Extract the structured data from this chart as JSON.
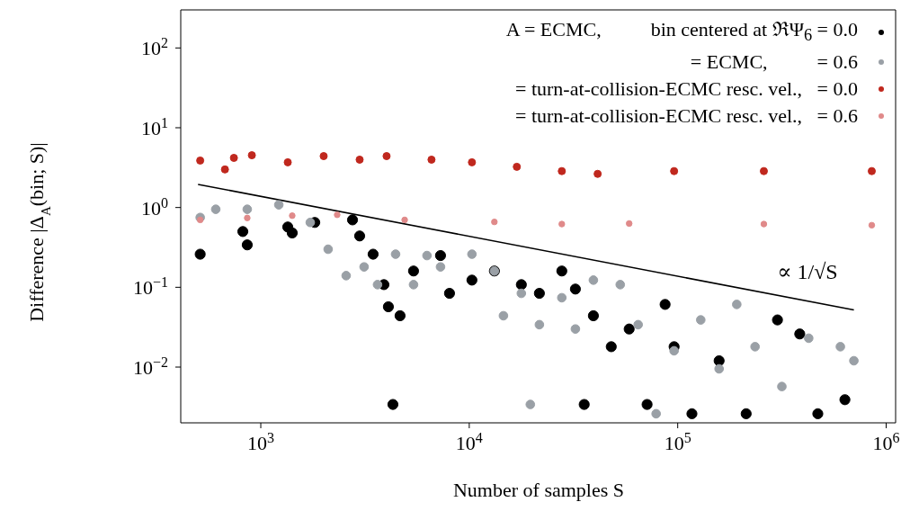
{
  "chart_data": {
    "type": "scatter",
    "xlabel": "Number of samples S",
    "ylabel": "Difference |Δ$_{A}$(bin; S)|",
    "log": "xy",
    "legend": "top right",
    "marker": "circle",
    "xlim": [
      413,
      1110000
    ],
    "xticks": [
      {
        "value": 1000,
        "label": "10$^{3}$"
      },
      {
        "value": 10000,
        "label": "10$^{4}$"
      },
      {
        "value": 100000,
        "label": "10$^{5}$"
      },
      {
        "value": 1000000,
        "label": "10$^{6}$"
      }
    ],
    "ylim": [
      0.002,
      300
    ],
    "yticks": [
      {
        "value": 0.01,
        "label": "10$^{−2}$"
      },
      {
        "value": 0.1,
        "label": "10$^{−1}$"
      },
      {
        "value": 1,
        "label": "10$^{0}$"
      },
      {
        "value": 10,
        "label": "10$^{1}$"
      },
      {
        "value": 100,
        "label": "10$^{2}$"
      }
    ],
    "annotations": [
      "∝ 1/√S"
    ],
    "series": [
      {
        "name": "A = ECMC,          bin centered at ℜΨ$_{6}$ = 0.0",
        "color": "#000000",
        "x": [
          512,
          820,
          861,
          1347,
          1415,
          1815,
          2754,
          2980,
          3458,
          3896,
          4093,
          4303,
          4656,
          5404,
          7280,
          8040,
          10300,
          13200,
          17780,
          21700,
          27800,
          32300,
          35600,
          39400,
          48000,
          58500,
          71300,
          87000,
          96100,
          117000,
          158000,
          213000,
          301000,
          385000,
          470000,
          634000
        ],
        "values": [
          0.26,
          0.5,
          0.34,
          0.57,
          0.48,
          0.65,
          0.7,
          0.44,
          0.26,
          0.108,
          0.057,
          0.0034,
          0.044,
          0.16,
          0.25,
          0.084,
          0.123,
          0.16,
          0.108,
          0.084,
          0.16,
          0.095,
          0.0034,
          0.044,
          0.018,
          0.03,
          0.0034,
          0.061,
          0.018,
          0.0026,
          0.012,
          0.0026,
          0.039,
          0.026,
          0.0026,
          0.0039
        ]
      },
      {
        "name": "= ECMC,          = 0.6",
        "color": "#9aa0a6",
        "x": [
          512,
          608,
          861,
          1220,
          1727,
          2104,
          2567,
          3130,
          3631,
          4432,
          5404,
          6270,
          7280,
          10300,
          13200,
          14590,
          17780,
          19630,
          21700,
          27800,
          32300,
          39400,
          53000,
          64600,
          78800,
          96100,
          129000,
          158000,
          192000,
          235000,
          316000,
          425000,
          603000,
          700000
        ],
        "values": [
          0.75,
          0.95,
          0.95,
          1.08,
          0.65,
          0.3,
          0.14,
          0.18,
          0.108,
          0.26,
          0.108,
          0.25,
          0.18,
          0.26,
          0.16,
          0.044,
          0.084,
          0.0034,
          0.034,
          0.074,
          0.03,
          0.123,
          0.108,
          0.034,
          0.0026,
          0.016,
          0.039,
          0.0095,
          0.061,
          0.018,
          0.0057,
          0.023,
          0.018,
          0.012
        ]
      },
      {
        "name": "= turn-at-collision-ECMC resc. vel.,   = 0.0",
        "color": "#c0281e",
        "x": [
          512,
          673,
          743,
          906,
          1347,
          2003,
          2980,
          4013,
          6590,
          10300,
          16910,
          27800,
          41300,
          96100,
          259000,
          853000
        ],
        "values": [
          3.88,
          3.0,
          4.19,
          4.52,
          3.69,
          4.41,
          3.98,
          4.41,
          3.98,
          3.69,
          3.24,
          2.86,
          2.64,
          2.86,
          2.86,
          2.86
        ]
      },
      {
        "name": "= turn-at-collision-ECMC resc. vel.,   = 0.6",
        "color": "#e08a8a",
        "x": [
          512,
          861,
          1415,
          2325,
          4900,
          13200,
          27800,
          58500,
          259000,
          853000
        ],
        "values": [
          0.7,
          0.74,
          0.79,
          0.81,
          0.7,
          0.66,
          0.62,
          0.63,
          0.62,
          0.6
        ]
      },
      {
        "type": "line",
        "marker": "none",
        "color": "#000000",
        "x": [
          500,
          700000
        ],
        "values": [
          1.95,
          0.052
        ]
      }
    ]
  }
}
